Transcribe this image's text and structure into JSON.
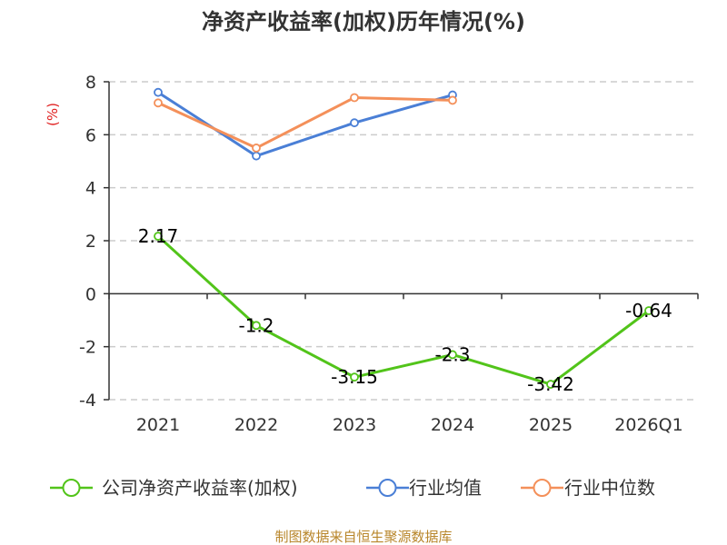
{
  "chart_data": {
    "type": "line",
    "title": "净资产收益率(加权)历年情况(%)",
    "ylabel": "(%)",
    "xlabel": "",
    "categories": [
      "2021",
      "2022",
      "2023",
      "2024",
      "2025",
      "2026Q1"
    ],
    "ylim": [
      -4,
      8
    ],
    "yticks": [
      -4,
      -2,
      0,
      2,
      4,
      6,
      8
    ],
    "ytick_labels": [
      "-4",
      "-2",
      "0",
      "2",
      "4",
      "6",
      "8"
    ],
    "grid": true,
    "legend_position": "bottom",
    "series": [
      {
        "name": "公司净资产收益率(加权)",
        "color": "#52c41a",
        "values": [
          2.17,
          -1.2,
          -3.15,
          -2.3,
          -3.42,
          -0.64
        ],
        "labels": [
          "2.17",
          "-1.2",
          "-3.15",
          "-2.3",
          "-3.42",
          "-0.64"
        ]
      },
      {
        "name": "行业均值",
        "color": "#4a7fd6",
        "values": [
          7.6,
          5.2,
          6.45,
          7.5,
          null,
          null
        ]
      },
      {
        "name": "行业中位数",
        "color": "#f4905a",
        "values": [
          7.2,
          5.5,
          7.4,
          7.3,
          null,
          null
        ]
      }
    ],
    "source": "制图数据来自恒生聚源数据库"
  }
}
